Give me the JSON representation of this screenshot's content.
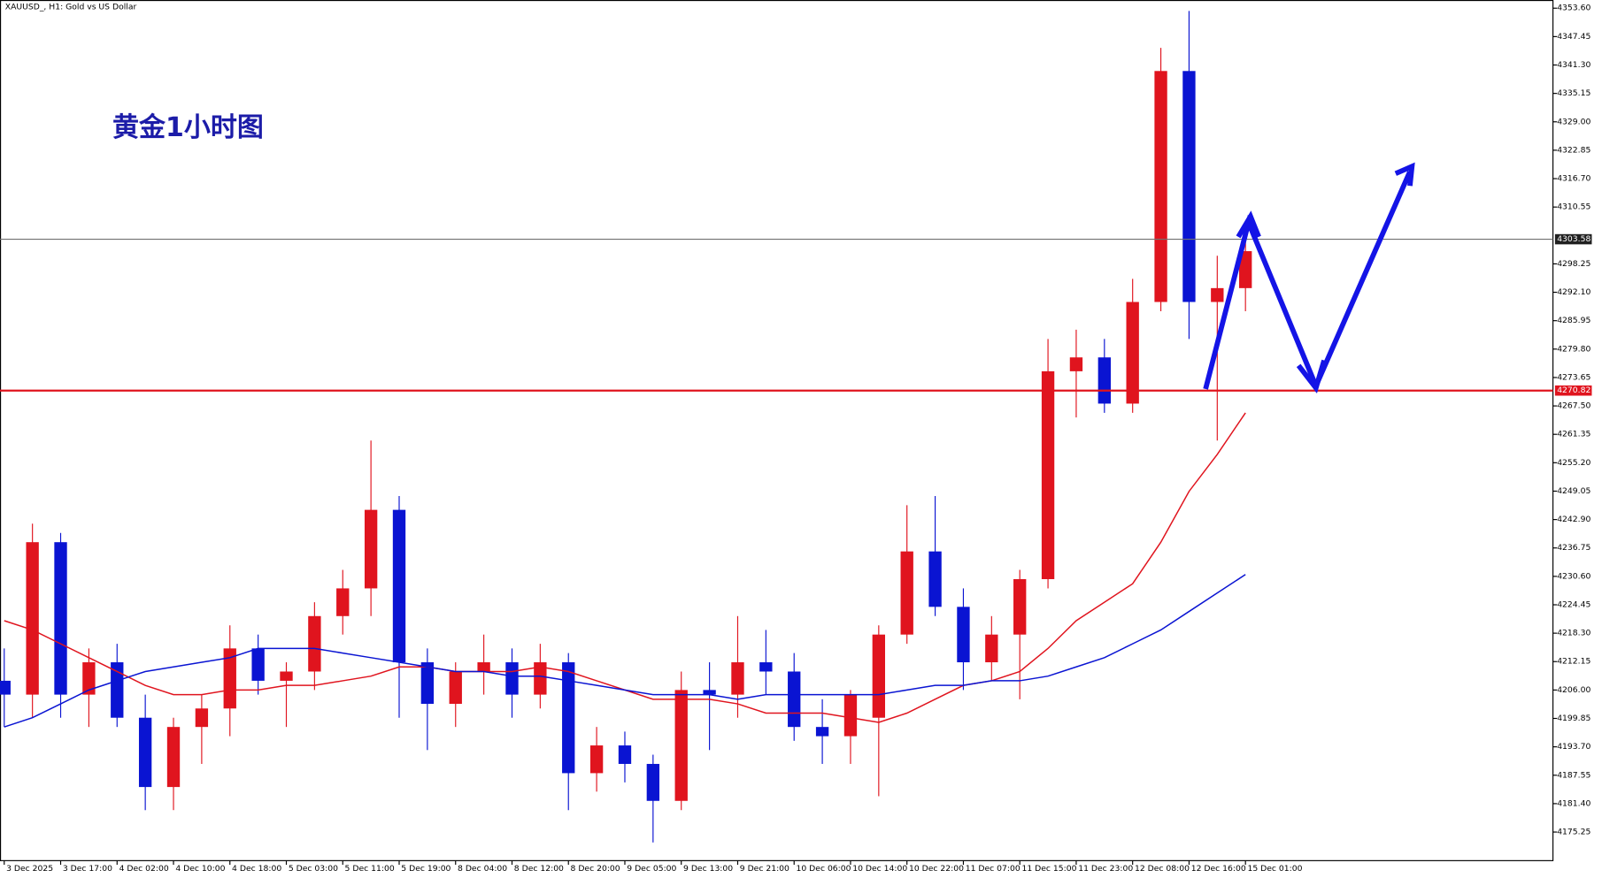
{
  "chart_data": {
    "type": "candlestick",
    "title": "XAUUSD_, H1:  Gold vs US Dollar",
    "annotation": "黄金1小时图",
    "up_color": "#e0141e",
    "down_color": "#0a14d2",
    "xlim": [
      -0.15,
      54.9
    ],
    "ylim": [
      4169.06,
      4355.37
    ],
    "xticks": [
      {
        "value": 0,
        "label": "3 Dec 2025"
      },
      {
        "value": 2,
        "label": "3 Dec 17:00"
      },
      {
        "value": 4,
        "label": "4 Dec 02:00"
      },
      {
        "value": 6,
        "label": "4 Dec 10:00"
      },
      {
        "value": 8,
        "label": "4 Dec 18:00"
      },
      {
        "value": 10,
        "label": "5 Dec 03:00"
      },
      {
        "value": 12,
        "label": "5 Dec 11:00"
      },
      {
        "value": 14,
        "label": "5 Dec 19:00"
      },
      {
        "value": 16,
        "label": "8 Dec 04:00"
      },
      {
        "value": 18,
        "label": "8 Dec 12:00"
      },
      {
        "value": 20,
        "label": "8 Dec 20:00"
      },
      {
        "value": 22,
        "label": "9 Dec 05:00"
      },
      {
        "value": 24,
        "label": "9 Dec 13:00"
      },
      {
        "value": 26,
        "label": "9 Dec 21:00"
      },
      {
        "value": 28,
        "label": "10 Dec 06:00"
      },
      {
        "value": 30,
        "label": "10 Dec 14:00"
      },
      {
        "value": 32,
        "label": "10 Dec 22:00"
      },
      {
        "value": 34,
        "label": "11 Dec 07:00"
      },
      {
        "value": 36,
        "label": "11 Dec 15:00"
      },
      {
        "value": 38,
        "label": "11 Dec 23:00"
      },
      {
        "value": 40,
        "label": "12 Dec 08:00"
      },
      {
        "value": 42,
        "label": "12 Dec 16:00"
      },
      {
        "value": 44,
        "label": "15 Dec 01:00"
      }
    ],
    "yticks": [
      {
        "value": 4353.6,
        "label": "4353.60"
      },
      4347.45,
      {
        "value": 4341.3,
        "label": "4341.30"
      },
      4335.15,
      {
        "value": 4329.0,
        "label": "4329.00"
      },
      4322.85,
      {
        "value": 4316.7,
        "label": "4316.70"
      },
      4310.55,
      4298.25,
      {
        "value": 4292.1,
        "label": "4292.10"
      },
      4285.95,
      {
        "value": 4279.8,
        "label": "4279.80"
      },
      4273.65,
      {
        "value": 4267.5,
        "label": "4267.50"
      },
      4261.35,
      {
        "value": 4255.2,
        "label": "4255.20"
      },
      4249.05,
      {
        "value": 4242.9,
        "label": "4242.90"
      },
      4236.75,
      {
        "value": 4230.6,
        "label": "4230.60"
      },
      4224.45,
      {
        "value": 4218.3,
        "label": "4218.30"
      },
      4212.15,
      {
        "value": 4206.0,
        "label": "4206.00"
      },
      4199.85,
      {
        "value": 4193.7,
        "label": "4193.70"
      },
      4187.55,
      {
        "value": 4181.4,
        "label": "4181.40"
      },
      4175.25
    ],
    "open": [
      4208,
      4205,
      4238,
      4205,
      4212,
      4200,
      4185,
      4198,
      4202,
      4215,
      4208,
      4210,
      4222,
      4228,
      4245,
      4212,
      4203,
      4210,
      4212,
      4205,
      4212,
      4188,
      4194,
      4190,
      4182,
      4206,
      4205,
      4212,
      4210,
      4198,
      4196,
      4200,
      4218,
      4236,
      4224,
      4212,
      4218,
      4230,
      4275,
      4278,
      4268,
      4290,
      4340,
      4290,
      4293
    ],
    "high": [
      4215,
      4242,
      4240,
      4215,
      4216,
      4205,
      4200,
      4205,
      4220,
      4218,
      4212,
      4225,
      4232,
      4260,
      4248,
      4215,
      4212,
      4218,
      4215,
      4216,
      4214,
      4198,
      4197,
      4192,
      4210,
      4212,
      4222,
      4219,
      4214,
      4204,
      4206,
      4220,
      4246,
      4248,
      4228,
      4222,
      4232,
      4282,
      4284,
      4282,
      4295,
      4345,
      4353,
      4300,
      4303
    ],
    "low": [
      4198,
      4200,
      4200,
      4198,
      4198,
      4180,
      4180,
      4190,
      4196,
      4205,
      4198,
      4206,
      4218,
      4222,
      4200,
      4193,
      4198,
      4205,
      4200,
      4202,
      4180,
      4184,
      4186,
      4173,
      4180,
      4193,
      4200,
      4205,
      4195,
      4190,
      4190,
      4183,
      4216,
      4222,
      4206,
      4208,
      4204,
      4228,
      4265,
      4266,
      4266,
      4288,
      4282,
      4260,
      4288
    ],
    "close": [
      4205,
      4238,
      4205,
      4212,
      4200,
      4185,
      4198,
      4202,
      4215,
      4208,
      4210,
      4222,
      4228,
      4245,
      4212,
      4203,
      4210,
      4212,
      4205,
      4212,
      4188,
      4194,
      4190,
      4182,
      4206,
      4205,
      4212,
      4210,
      4198,
      4196,
      4205,
      4218,
      4236,
      4224,
      4212,
      4218,
      4230,
      4275,
      4278,
      4268,
      4290,
      4340,
      4290,
      4293,
      4301
    ],
    "series": [
      {
        "color": "#e0141e",
        "values": [
          4221,
          4219,
          4216,
          4213,
          4210,
          4207,
          4205,
          4205,
          4206,
          4206,
          4207,
          4207,
          4208,
          4209,
          4211,
          4211,
          4210,
          4210,
          4210,
          4211,
          4210,
          4208,
          4206,
          4204,
          4204,
          4204,
          4203,
          4201,
          4201,
          4201,
          4200,
          4199,
          4201,
          4204,
          4207,
          4208,
          4210,
          4215,
          4221,
          4225,
          4229,
          4238,
          4249,
          4257,
          4266
        ]
      },
      {
        "color": "#0a14d2",
        "values": [
          4198,
          4200,
          4203,
          4206,
          4208,
          4210,
          4211,
          4212,
          4213,
          4215,
          4215,
          4215,
          4214,
          4213,
          4212,
          4211,
          4210,
          4210,
          4209,
          4209,
          4208,
          4207,
          4206,
          4205,
          4205,
          4205,
          4204,
          4205,
          4205,
          4205,
          4205,
          4205,
          4206,
          4207,
          4207,
          4208,
          4208,
          4209,
          4211,
          4213,
          4216,
          4219,
          4223,
          4227,
          4231
        ]
      }
    ],
    "hlines": [
      {
        "value": 4303.58,
        "color": "#707070",
        "tag_color": "#202020"
      },
      {
        "value": 4270.82,
        "color": "#e0141e",
        "tag_color": "#e0141e"
      }
    ]
  }
}
